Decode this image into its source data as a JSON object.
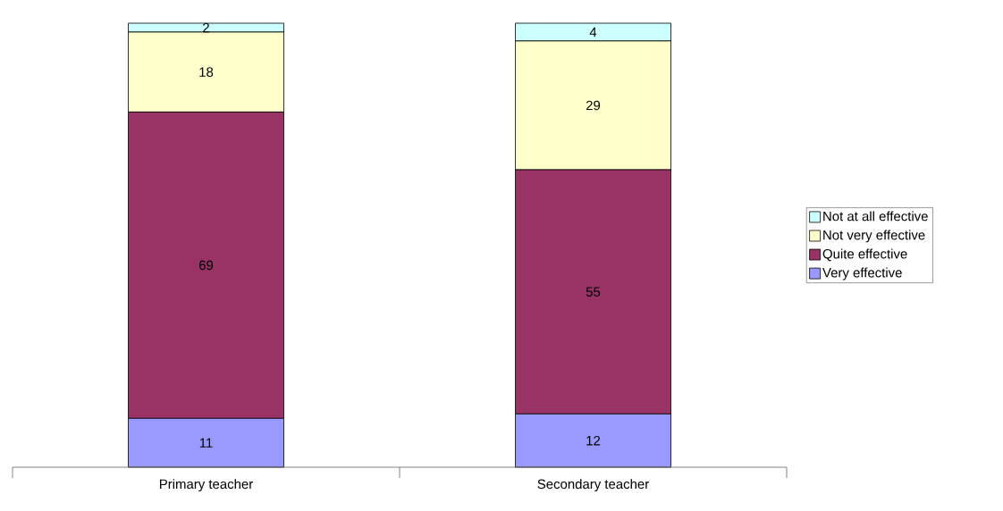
{
  "chart_data": {
    "type": "bar",
    "stacked": true,
    "categories": [
      "Primary teacher",
      "Secondary teacher"
    ],
    "series": [
      {
        "name": "Very effective",
        "color": "#9999ff",
        "values": [
          11,
          12
        ]
      },
      {
        "name": "Quite effective",
        "color": "#993366",
        "values": [
          69,
          55
        ]
      },
      {
        "name": "Not very effective",
        "color": "#ffffcc",
        "values": [
          18,
          29
        ]
      },
      {
        "name": "Not at all effective",
        "color": "#ccffff",
        "values": [
          2,
          4
        ]
      }
    ],
    "data_labels": true,
    "legend": "right"
  }
}
